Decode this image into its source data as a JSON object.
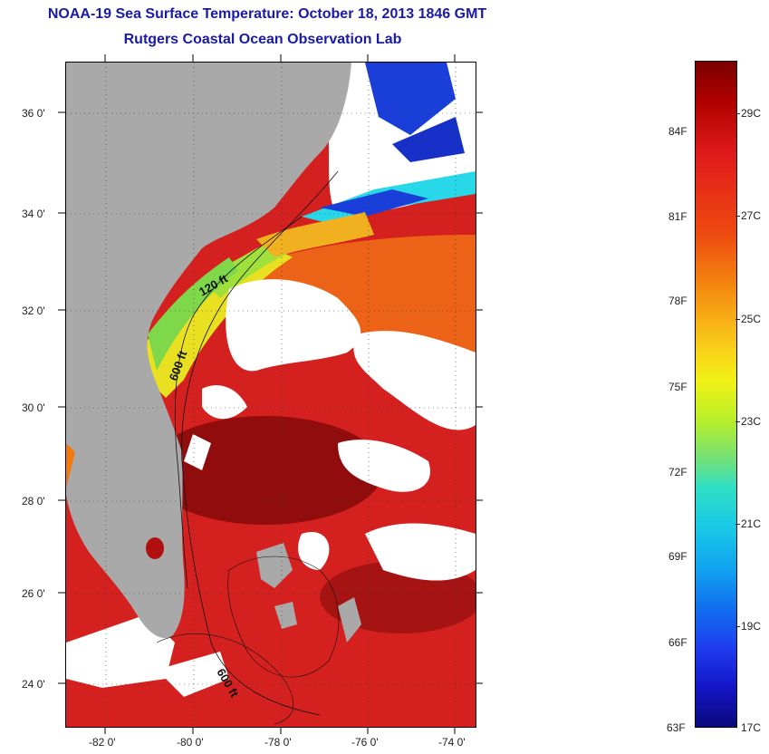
{
  "title": "NOAA-19 Sea Surface Temperature:  October 18, 2013 1846 GMT",
  "subtitle": "Rutgers Coastal Ocean Observation Lab",
  "map": {
    "lat_labels": [
      "36 0'",
      "34 0'",
      "32 0'",
      "30 0'",
      "28 0'",
      "26 0'",
      "24 0'"
    ],
    "lon_labels": [
      "-82 0'",
      "-80 0'",
      "-78 0'",
      "-76 0'",
      "-74 0'"
    ],
    "contour_labels": [
      "120 ft",
      "600 ft",
      "600 ft"
    ]
  },
  "colorbar": {
    "fahrenheit_labels": [
      "84F",
      "81F",
      "78F",
      "75F",
      "72F",
      "69F",
      "66F",
      "63F"
    ],
    "celsius_labels": [
      "29C",
      "27C",
      "25C",
      "23C",
      "21C",
      "19C",
      "17C"
    ],
    "colors": {
      "land": "#a9a9a9",
      "cloud": "#ffffff",
      "warm": "#d21e1e",
      "hot": "#8a0a0a",
      "orange": "#f07a10",
      "yellow": "#e8e020",
      "cyan": "#28d8e8",
      "blue": "#1a3ed8"
    }
  }
}
